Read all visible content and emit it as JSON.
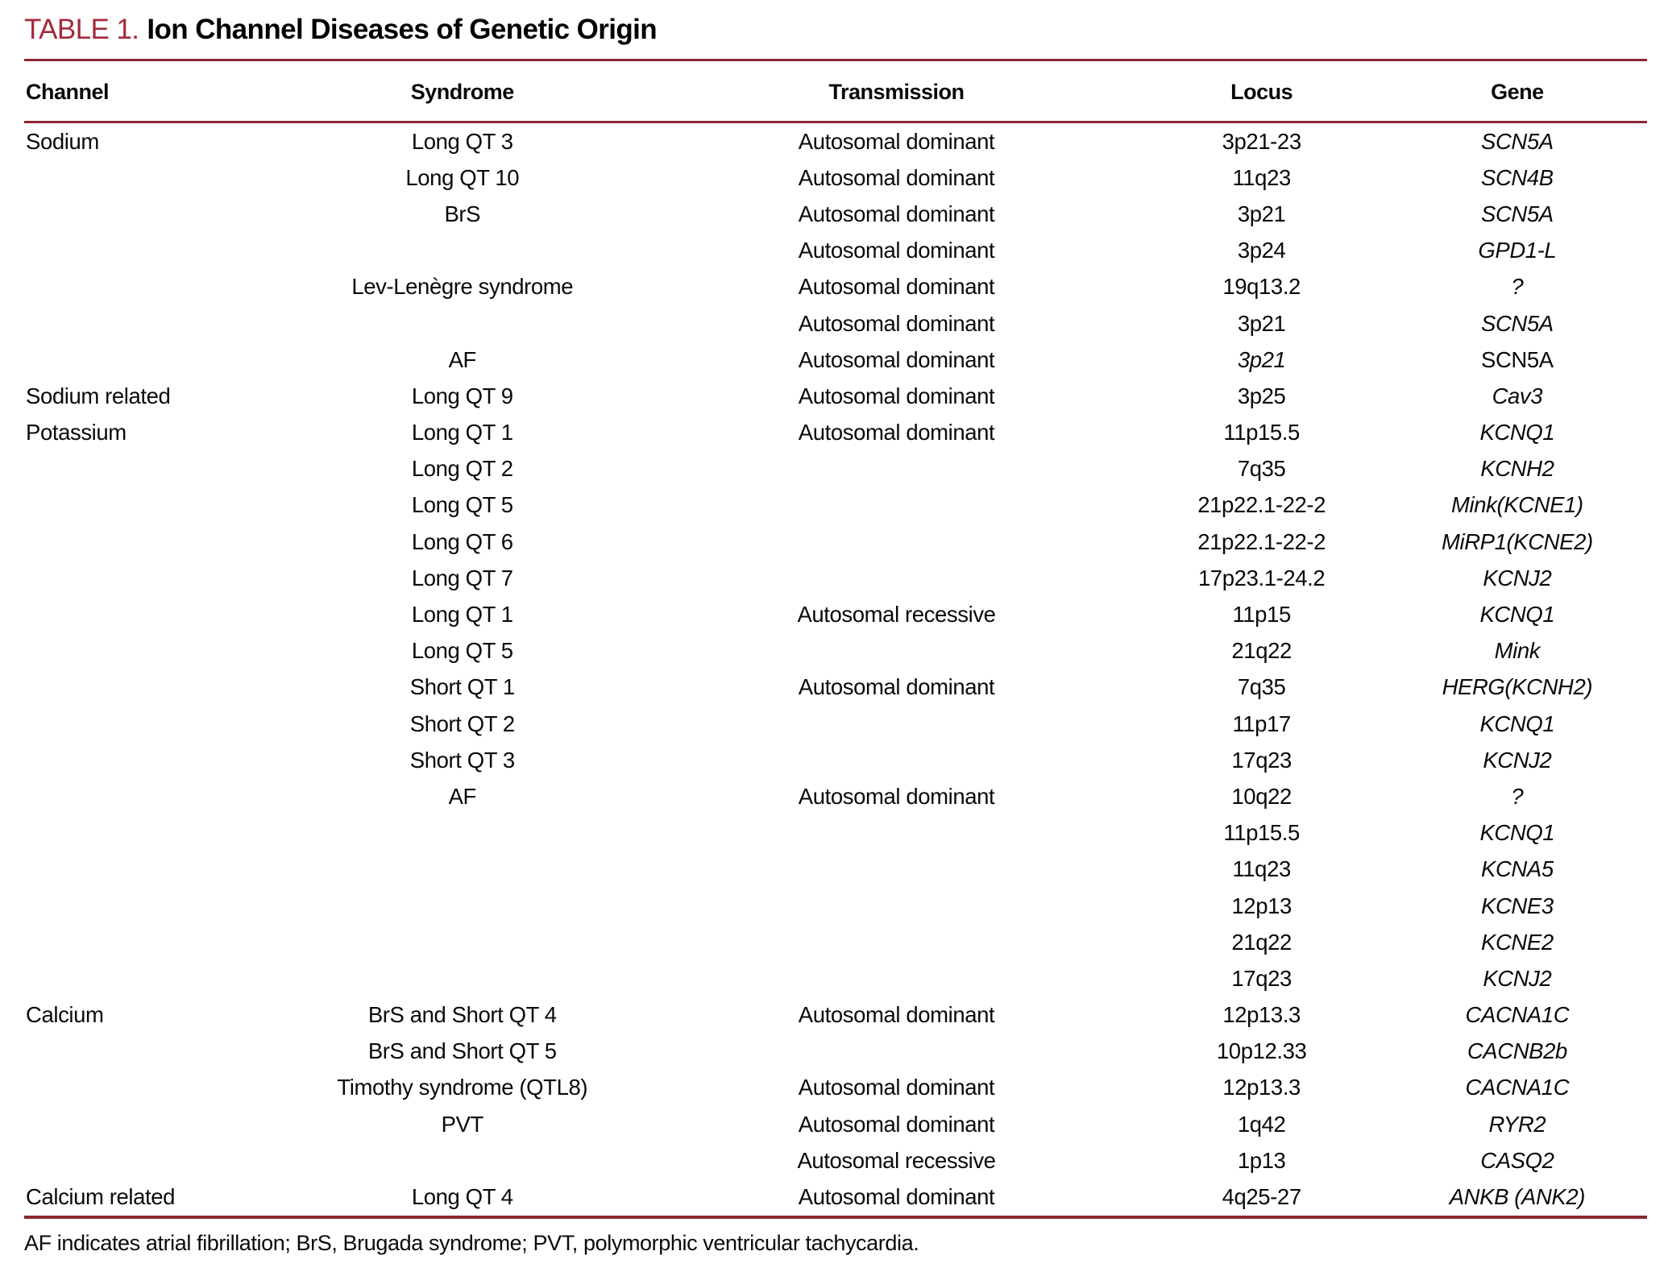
{
  "title": {
    "label": "TABLE 1.",
    "text": "Ion Channel Diseases of Genetic Origin"
  },
  "colors": {
    "accent_title": "#a32b3c",
    "rule": "#8c2633",
    "body_text": "#0a0a0a"
  },
  "table": {
    "columns": [
      "Channel",
      "Syndrome",
      "Transmission",
      "Locus",
      "Gene"
    ],
    "rows": [
      {
        "channel": "Sodium",
        "syndrome": "Long QT 3",
        "transmission": "Autosomal dominant",
        "locus": "3p21-23",
        "gene": "SCN5A"
      },
      {
        "channel": "",
        "syndrome": "Long QT 10",
        "transmission": "Autosomal dominant",
        "locus": "11q23",
        "gene": "SCN4B"
      },
      {
        "channel": "",
        "syndrome": "BrS",
        "transmission": "Autosomal dominant",
        "locus": "3p21",
        "gene": "SCN5A"
      },
      {
        "channel": "",
        "syndrome": "",
        "transmission": "Autosomal dominant",
        "locus": "3p24",
        "gene": "GPD1-L"
      },
      {
        "channel": "",
        "syndrome": "Lev-Lenègre syndrome",
        "transmission": "Autosomal dominant",
        "locus": "19q13.2",
        "gene": "?"
      },
      {
        "channel": "",
        "syndrome": "",
        "transmission": "Autosomal dominant",
        "locus": "3p21",
        "gene": "SCN5A"
      },
      {
        "channel": "",
        "syndrome": "AF",
        "transmission": "Autosomal dominant",
        "locus": "3p21",
        "gene": "SCN5A",
        "locus_italic": true,
        "gene_italic": false
      },
      {
        "channel": "Sodium related",
        "syndrome": "Long QT 9",
        "transmission": "Autosomal dominant",
        "locus": "3p25",
        "gene": "Cav3"
      },
      {
        "channel": "Potassium",
        "syndrome": "Long QT 1",
        "transmission": "Autosomal dominant",
        "locus": "11p15.5",
        "gene": "KCNQ1"
      },
      {
        "channel": "",
        "syndrome": "Long QT 2",
        "transmission": "",
        "locus": "7q35",
        "gene": "KCNH2"
      },
      {
        "channel": "",
        "syndrome": "Long QT 5",
        "transmission": "",
        "locus": "21p22.1-22-2",
        "gene": "Mink(KCNE1)"
      },
      {
        "channel": "",
        "syndrome": "Long QT 6",
        "transmission": "",
        "locus": "21p22.1-22-2",
        "gene": "MiRP1(KCNE2)"
      },
      {
        "channel": "",
        "syndrome": "Long QT 7",
        "transmission": "",
        "locus": "17p23.1-24.2",
        "gene": "KCNJ2"
      },
      {
        "channel": "",
        "syndrome": "Long QT 1",
        "transmission": "Autosomal recessive",
        "locus": "11p15",
        "gene": "KCNQ1"
      },
      {
        "channel": "",
        "syndrome": "Long QT 5",
        "transmission": "",
        "locus": "21q22",
        "gene": "Mink"
      },
      {
        "channel": "",
        "syndrome": "Short QT 1",
        "transmission": "Autosomal dominant",
        "locus": "7q35",
        "gene": "HERG(KCNH2)"
      },
      {
        "channel": "",
        "syndrome": "Short QT 2",
        "transmission": "",
        "locus": "11p17",
        "gene": "KCNQ1"
      },
      {
        "channel": "",
        "syndrome": "Short QT 3",
        "transmission": "",
        "locus": "17q23",
        "gene": "KCNJ2"
      },
      {
        "channel": "",
        "syndrome": "AF",
        "transmission": "Autosomal dominant",
        "locus": "10q22",
        "gene": "?"
      },
      {
        "channel": "",
        "syndrome": "",
        "transmission": "",
        "locus": "11p15.5",
        "gene": "KCNQ1"
      },
      {
        "channel": "",
        "syndrome": "",
        "transmission": "",
        "locus": "11q23",
        "gene": "KCNA5"
      },
      {
        "channel": "",
        "syndrome": "",
        "transmission": "",
        "locus": "12p13",
        "gene": "KCNE3"
      },
      {
        "channel": "",
        "syndrome": "",
        "transmission": "",
        "locus": "21q22",
        "gene": "KCNE2"
      },
      {
        "channel": "",
        "syndrome": "",
        "transmission": "",
        "locus": "17q23",
        "gene": "KCNJ2"
      },
      {
        "channel": "Calcium",
        "syndrome": "BrS and Short QT 4",
        "transmission": "Autosomal dominant",
        "locus": "12p13.3",
        "gene": "CACNA1C"
      },
      {
        "channel": "",
        "syndrome": "BrS and Short QT 5",
        "transmission": "",
        "locus": "10p12.33",
        "gene": "CACNB2b"
      },
      {
        "channel": "",
        "syndrome": "Timothy syndrome (QTL8)",
        "transmission": "Autosomal dominant",
        "locus": "12p13.3",
        "gene": "CACNA1C"
      },
      {
        "channel": "",
        "syndrome": "PVT",
        "transmission": "Autosomal dominant",
        "locus": "1q42",
        "gene": "RYR2"
      },
      {
        "channel": "",
        "syndrome": "",
        "transmission": "Autosomal recessive",
        "locus": "1p13",
        "gene": "CASQ2"
      },
      {
        "channel": "Calcium related",
        "syndrome": "Long QT 4",
        "transmission": "Autosomal dominant",
        "locus": "4q25-27",
        "gene": "ANKB (ANK2)"
      }
    ]
  },
  "footnote": "AF indicates atrial fibrillation; BrS, Brugada syndrome; PVT, polymorphic ventricular tachycardia."
}
